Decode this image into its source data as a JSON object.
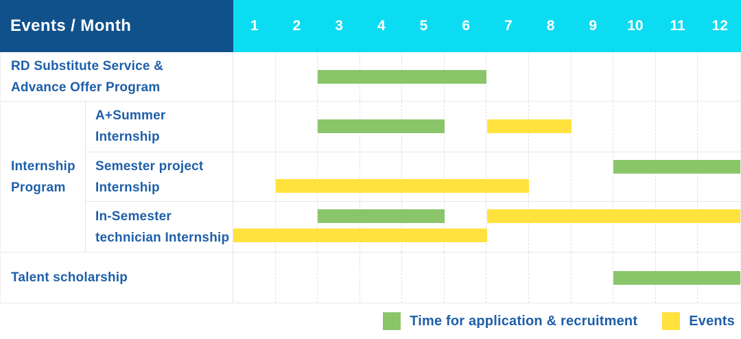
{
  "header": {
    "title": "Events / Month",
    "months": [
      "1",
      "2",
      "3",
      "4",
      "5",
      "6",
      "7",
      "8",
      "9",
      "10",
      "11",
      "12"
    ]
  },
  "colors": {
    "header_bg": "#10518c",
    "months_bg": "#0cdcf2",
    "application": "#8bc56a",
    "events": "#ffe23e",
    "label_text": "#1e5fa9"
  },
  "legend": [
    {
      "key": "application",
      "label": "Time for application & recruitment"
    },
    {
      "key": "events",
      "label": "Events"
    }
  ],
  "chart_data": {
    "type": "bar",
    "variant": "gantt-table",
    "x_axis": {
      "label": "Month",
      "categories": [
        "1",
        "2",
        "3",
        "4",
        "5",
        "6",
        "7",
        "8",
        "9",
        "10",
        "11",
        "12"
      ],
      "range": [
        1,
        12
      ]
    },
    "legend_position": "bottom-right",
    "series_legend": [
      {
        "id": "application",
        "label": "Time for application & recruitment",
        "color": "#8bc56a"
      },
      {
        "id": "events",
        "label": "Events",
        "color": "#ffe23e"
      }
    ],
    "rows": [
      {
        "id": "rd-substitute-service",
        "label_lines": [
          "RD Substitute Service &",
          "Advance Offer Program"
        ],
        "bars": [
          {
            "series": "application",
            "start_month": 3,
            "end_month": 6,
            "track": "center"
          }
        ]
      },
      {
        "id": "internship-program",
        "group_label_lines": [
          "Internship",
          "Program"
        ],
        "sub_rows": [
          {
            "id": "a-plus-summer-internship",
            "label_lines": [
              "A+Summer",
              "Internship"
            ],
            "bars": [
              {
                "series": "application",
                "start_month": 3,
                "end_month": 5,
                "track": "center"
              },
              {
                "series": "events",
                "start_month": 7,
                "end_month": 8,
                "track": "center"
              }
            ]
          },
          {
            "id": "semester-project-internship",
            "label_lines": [
              "Semester project",
              "Internship"
            ],
            "bars": [
              {
                "series": "application",
                "start_month": 10,
                "end_month": 12,
                "track": "top"
              },
              {
                "series": "events",
                "start_month": 2,
                "end_month": 7,
                "track": "bottom"
              }
            ]
          },
          {
            "id": "in-semester-technician-internship",
            "label_lines": [
              "In-Semester",
              "technician Internship"
            ],
            "bars": [
              {
                "series": "application",
                "start_month": 3,
                "end_month": 5,
                "track": "top"
              },
              {
                "series": "events",
                "start_month": 7,
                "end_month": 12,
                "track": "top"
              },
              {
                "series": "events",
                "start_month": 1,
                "end_month": 6,
                "track": "bottom"
              }
            ]
          }
        ]
      },
      {
        "id": "talent-scholarship",
        "label_lines": [
          "Talent scholarship"
        ],
        "bars": [
          {
            "series": "application",
            "start_month": 10,
            "end_month": 12,
            "track": "center"
          }
        ]
      }
    ]
  }
}
